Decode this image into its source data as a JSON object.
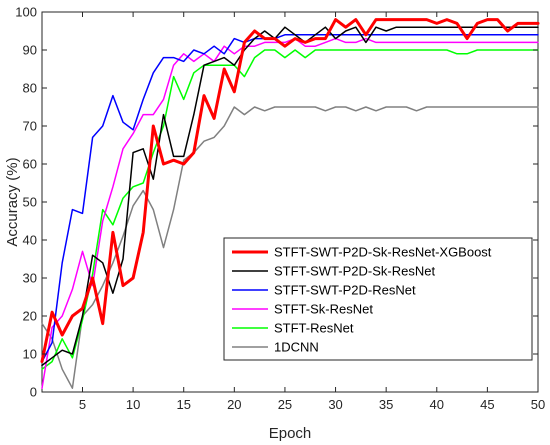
{
  "chart_data": {
    "type": "line",
    "title": "",
    "xlabel": "Epoch",
    "ylabel": "Accuracy (%)",
    "xlim": [
      1,
      50
    ],
    "ylim": [
      0,
      100
    ],
    "x_ticks": [
      5,
      10,
      15,
      20,
      25,
      30,
      35,
      40,
      45,
      50
    ],
    "y_ticks": [
      0,
      10,
      20,
      30,
      40,
      50,
      60,
      70,
      80,
      90,
      100
    ],
    "grid": false,
    "legend_position": "lower-right",
    "series": [
      {
        "name": "STFT-SWT-P2D-Sk-ResNet-XGBoost",
        "color": "#ff0000",
        "width": 3,
        "x": [
          1,
          2,
          3,
          4,
          5,
          6,
          7,
          8,
          9,
          10,
          11,
          12,
          13,
          14,
          15,
          16,
          17,
          18,
          19,
          20,
          21,
          22,
          23,
          24,
          25,
          26,
          27,
          28,
          29,
          30,
          31,
          32,
          33,
          34,
          35,
          36,
          37,
          38,
          39,
          40,
          41,
          42,
          43,
          44,
          45,
          46,
          47,
          48,
          49,
          50
        ],
        "y": [
          8,
          21,
          15,
          20,
          22,
          30,
          18,
          42,
          28,
          30,
          42,
          70,
          60,
          61,
          60,
          63,
          78,
          72,
          85,
          79,
          92,
          95,
          93,
          93,
          91,
          93,
          92,
          93,
          93,
          98,
          96,
          98,
          94,
          98,
          98,
          98,
          98,
          98,
          98,
          97,
          98,
          97,
          93,
          97,
          98,
          98,
          95,
          97,
          97,
          97
        ]
      },
      {
        "name": "STFT-SWT-P2D-Sk-ResNet",
        "color": "#000000",
        "width": 1.5,
        "x": [
          1,
          2,
          3,
          4,
          5,
          6,
          7,
          8,
          9,
          10,
          11,
          12,
          13,
          14,
          15,
          16,
          17,
          18,
          19,
          20,
          21,
          22,
          23,
          24,
          25,
          26,
          27,
          28,
          29,
          30,
          31,
          32,
          33,
          34,
          35,
          36,
          37,
          38,
          39,
          40,
          41,
          42,
          43,
          44,
          45,
          46,
          47,
          48,
          49,
          50
        ],
        "y": [
          7,
          9,
          11,
          10,
          20,
          36,
          34,
          26,
          35,
          63,
          64,
          56,
          73,
          62,
          62,
          73,
          86,
          87,
          88,
          86,
          90,
          93,
          95,
          93,
          96,
          94,
          92,
          94,
          96,
          93,
          95,
          96,
          92,
          96,
          95,
          96,
          96,
          96,
          96,
          96,
          96,
          96,
          96,
          96,
          96,
          96,
          96,
          96,
          96,
          96
        ]
      },
      {
        "name": "STFT-SWT-P2D-ResNet",
        "color": "#0000ff",
        "width": 1.5,
        "x": [
          1,
          2,
          3,
          4,
          5,
          6,
          7,
          8,
          9,
          10,
          11,
          12,
          13,
          14,
          15,
          16,
          17,
          18,
          19,
          20,
          21,
          22,
          23,
          24,
          25,
          26,
          27,
          28,
          29,
          30,
          31,
          32,
          33,
          34,
          35,
          36,
          37,
          38,
          39,
          40,
          41,
          42,
          43,
          44,
          45,
          46,
          47,
          48,
          49,
          50
        ],
        "y": [
          8,
          13,
          34,
          48,
          47,
          67,
          70,
          78,
          71,
          69,
          77,
          84,
          88,
          88,
          87,
          90,
          89,
          91,
          89,
          93,
          92,
          93,
          93,
          93,
          94,
          94,
          94,
          94,
          94,
          94,
          94,
          94,
          94,
          94,
          94,
          94,
          94,
          94,
          94,
          94,
          94,
          94,
          94,
          94,
          94,
          94,
          94,
          94,
          94,
          94
        ]
      },
      {
        "name": "STFT-Sk-ResNet",
        "color": "#ff00ff",
        "width": 1.5,
        "x": [
          1,
          2,
          3,
          4,
          5,
          6,
          7,
          8,
          9,
          10,
          11,
          12,
          13,
          14,
          15,
          16,
          17,
          18,
          19,
          20,
          21,
          22,
          23,
          24,
          25,
          26,
          27,
          28,
          29,
          30,
          31,
          32,
          33,
          34,
          35,
          36,
          37,
          38,
          39,
          40,
          41,
          42,
          43,
          44,
          45,
          46,
          47,
          48,
          49,
          50
        ],
        "y": [
          1,
          17,
          20,
          27,
          37,
          28,
          45,
          54,
          64,
          68,
          73,
          73,
          77,
          86,
          89,
          87,
          89,
          87,
          91,
          89,
          91,
          91,
          92,
          92,
          92,
          93,
          91,
          91,
          92,
          93,
          92,
          92,
          93,
          92,
          92,
          92,
          92,
          92,
          92,
          92,
          92,
          92,
          92,
          92,
          92,
          92,
          92,
          92,
          92,
          92
        ]
      },
      {
        "name": "STFT-ResNet",
        "color": "#00ff00",
        "width": 1.5,
        "x": [
          1,
          2,
          3,
          4,
          5,
          6,
          7,
          8,
          9,
          10,
          11,
          12,
          13,
          14,
          15,
          16,
          17,
          18,
          19,
          20,
          21,
          22,
          23,
          24,
          25,
          26,
          27,
          28,
          29,
          30,
          31,
          32,
          33,
          34,
          35,
          36,
          37,
          38,
          39,
          40,
          41,
          42,
          43,
          44,
          45,
          46,
          47,
          48,
          49,
          50
        ],
        "y": [
          6,
          8,
          14,
          9,
          19,
          31,
          48,
          44,
          51,
          54,
          55,
          63,
          70,
          83,
          77,
          84,
          86,
          86,
          86,
          86,
          83,
          88,
          90,
          90,
          88,
          90,
          88,
          90,
          90,
          90,
          90,
          90,
          90,
          90,
          90,
          90,
          90,
          90,
          90,
          90,
          90,
          89,
          89,
          90,
          90,
          90,
          90,
          90,
          90,
          90
        ]
      },
      {
        "name": "1DCNN",
        "color": "#808080",
        "width": 1.5,
        "x": [
          1,
          2,
          3,
          4,
          5,
          6,
          7,
          8,
          9,
          10,
          11,
          12,
          13,
          14,
          15,
          16,
          17,
          18,
          19,
          20,
          21,
          22,
          23,
          24,
          25,
          26,
          27,
          28,
          29,
          30,
          31,
          32,
          33,
          34,
          35,
          36,
          37,
          38,
          39,
          40,
          41,
          42,
          43,
          44,
          45,
          46,
          47,
          48,
          49,
          50
        ],
        "y": [
          18,
          14,
          6,
          1,
          20,
          23,
          28,
          34,
          41,
          49,
          53,
          48,
          38,
          48,
          61,
          63,
          66,
          67,
          70,
          75,
          73,
          75,
          74,
          75,
          75,
          75,
          75,
          75,
          74,
          75,
          75,
          74,
          75,
          74,
          75,
          75,
          75,
          74,
          75,
          75,
          75,
          75,
          75,
          75,
          75,
          75,
          75,
          75,
          75,
          75
        ]
      }
    ]
  }
}
